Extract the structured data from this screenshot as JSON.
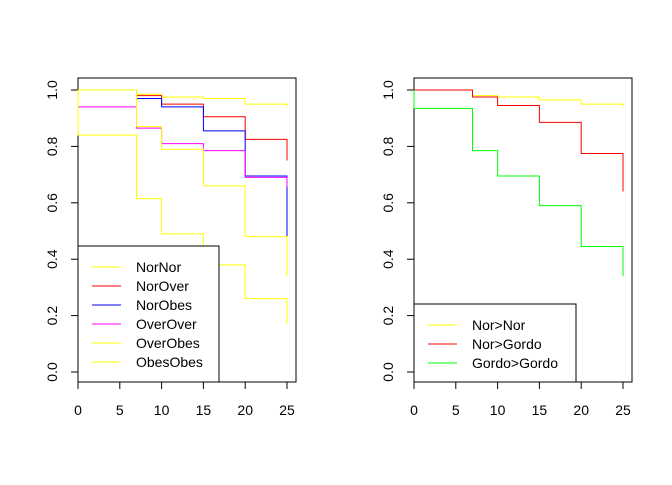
{
  "chart_data": [
    {
      "type": "line",
      "step": true,
      "title": "",
      "xlabel": "",
      "ylabel": "",
      "xlim": [
        0,
        25
      ],
      "ylim": [
        0,
        1
      ],
      "xticks": [
        "0",
        "5",
        "10",
        "15",
        "20",
        "25"
      ],
      "yticks": [
        "0.0",
        "0.2",
        "0.4",
        "0.6",
        "0.8",
        "1.0"
      ],
      "grid": false,
      "legend_position": "bottom-left",
      "series": [
        {
          "name": "NorNor",
          "color": "#ffff00",
          "x": [
            0,
            7,
            10,
            15,
            20,
            25
          ],
          "y": [
            1.0,
            0.985,
            0.975,
            0.97,
            0.95,
            0.94
          ]
        },
        {
          "name": "NorOver",
          "color": "#ff0000",
          "x": [
            0,
            7,
            10,
            15,
            20,
            25
          ],
          "y": [
            1.0,
            0.98,
            0.95,
            0.905,
            0.825,
            0.75
          ]
        },
        {
          "name": "NorObes",
          "color": "#0000ff",
          "x": [
            0,
            7,
            10,
            15,
            20,
            25
          ],
          "y": [
            1.0,
            0.97,
            0.94,
            0.855,
            0.695,
            0.48
          ]
        },
        {
          "name": "OverOver",
          "color": "#ff00ff",
          "x": [
            0,
            7,
            10,
            15,
            20,
            25
          ],
          "y": [
            0.94,
            0.865,
            0.81,
            0.785,
            0.69,
            0.655
          ]
        },
        {
          "name": "OverObes",
          "color": "#ffff00",
          "x": [
            0,
            7,
            10,
            15,
            20,
            25
          ],
          "y": [
            0.84,
            0.615,
            0.49,
            0.38,
            0.26,
            0.17
          ]
        },
        {
          "name": "ObesObes",
          "color": "#ffff00",
          "x": [
            0,
            7,
            10,
            15,
            20,
            25
          ],
          "y": [
            1.0,
            0.87,
            0.79,
            0.66,
            0.48,
            0.34
          ]
        }
      ]
    },
    {
      "type": "line",
      "step": true,
      "title": "",
      "xlabel": "",
      "ylabel": "",
      "xlim": [
        0,
        25
      ],
      "ylim": [
        0,
        1
      ],
      "xticks": [
        "0",
        "5",
        "10",
        "15",
        "20",
        "25"
      ],
      "yticks": [
        "0.0",
        "0.2",
        "0.4",
        "0.6",
        "0.8",
        "1.0"
      ],
      "grid": false,
      "legend_position": "bottom-left",
      "series": [
        {
          "name": "Nor>Nor",
          "color": "#ffff00",
          "x": [
            0,
            7,
            10,
            15,
            20,
            25
          ],
          "y": [
            1.0,
            0.98,
            0.975,
            0.965,
            0.95,
            0.94
          ]
        },
        {
          "name": "Nor>Gordo",
          "color": "#ff0000",
          "x": [
            0,
            7,
            10,
            15,
            20,
            25
          ],
          "y": [
            1.0,
            0.975,
            0.945,
            0.885,
            0.775,
            0.64
          ]
        },
        {
          "name": "Gordo>Gordo",
          "color": "#00ff00",
          "x": [
            0,
            7,
            10,
            15,
            20,
            25
          ],
          "y": [
            0.935,
            0.785,
            0.695,
            0.59,
            0.445,
            0.34
          ]
        }
      ]
    }
  ]
}
